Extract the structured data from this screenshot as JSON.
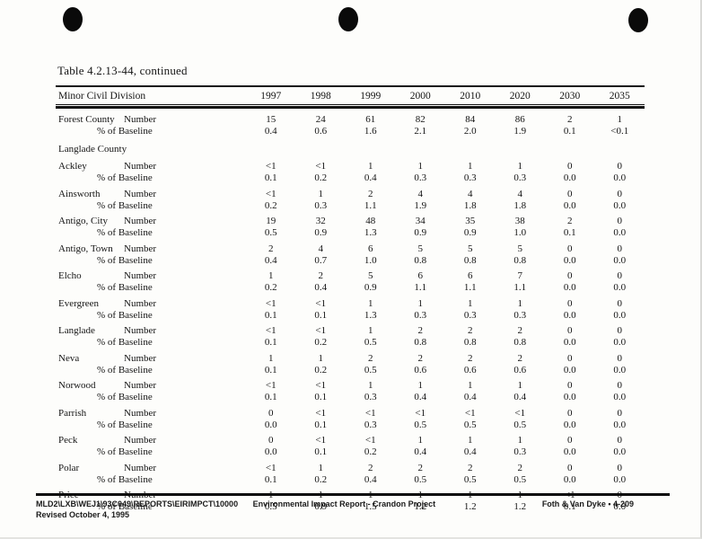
{
  "page": {
    "title": "Table 4.2.13-44, continued"
  },
  "table": {
    "columns": [
      "Minor Civil Division",
      "1997",
      "1998",
      "1999",
      "2000",
      "2010",
      "2020",
      "2030",
      "2035"
    ],
    "number_label": "Number",
    "pct_label": "% of Baseline",
    "rows": [
      {
        "type": "data",
        "name": "Forest County",
        "number": [
          "15",
          "24",
          "61",
          "82",
          "84",
          "86",
          "2",
          "1"
        ],
        "pct": [
          "0.4",
          "0.6",
          "1.6",
          "2.1",
          "2.0",
          "1.9",
          "0.1",
          "<0.1"
        ]
      },
      {
        "type": "section",
        "name": "Langlade County"
      },
      {
        "type": "data",
        "name": "Ackley",
        "number": [
          "<1",
          "<1",
          "1",
          "1",
          "1",
          "1",
          "0",
          "0"
        ],
        "pct": [
          "0.1",
          "0.2",
          "0.4",
          "0.3",
          "0.3",
          "0.3",
          "0.0",
          "0.0"
        ]
      },
      {
        "type": "data",
        "name": "Ainsworth",
        "number": [
          "<1",
          "1",
          "2",
          "4",
          "4",
          "4",
          "0",
          "0"
        ],
        "pct": [
          "0.2",
          "0.3",
          "1.1",
          "1.9",
          "1.8",
          "1.8",
          "0.0",
          "0.0"
        ]
      },
      {
        "type": "data",
        "name": "Antigo, City",
        "number": [
          "19",
          "32",
          "48",
          "34",
          "35",
          "38",
          "2",
          "0"
        ],
        "pct": [
          "0.5",
          "0.9",
          "1.3",
          "0.9",
          "0.9",
          "1.0",
          "0.1",
          "0.0"
        ]
      },
      {
        "type": "data",
        "name": "Antigo, Town",
        "number": [
          "2",
          "4",
          "6",
          "5",
          "5",
          "5",
          "0",
          "0"
        ],
        "pct": [
          "0.4",
          "0.7",
          "1.0",
          "0.8",
          "0.8",
          "0.8",
          "0.0",
          "0.0"
        ]
      },
      {
        "type": "data",
        "name": "Elcho",
        "number": [
          "1",
          "2",
          "5",
          "6",
          "6",
          "7",
          "0",
          "0"
        ],
        "pct": [
          "0.2",
          "0.4",
          "0.9",
          "1.1",
          "1.1",
          "1.1",
          "0.0",
          "0.0"
        ]
      },
      {
        "type": "data",
        "name": "Evergreen",
        "number": [
          "<1",
          "<1",
          "1",
          "1",
          "1",
          "1",
          "0",
          "0"
        ],
        "pct": [
          "0.1",
          "0.1",
          "1.3",
          "0.3",
          "0.3",
          "0.3",
          "0.0",
          "0.0"
        ]
      },
      {
        "type": "data",
        "name": "Langlade",
        "number": [
          "<1",
          "<1",
          "1",
          "2",
          "2",
          "2",
          "0",
          "0"
        ],
        "pct": [
          "0.1",
          "0.2",
          "0.5",
          "0.8",
          "0.8",
          "0.8",
          "0.0",
          "0.0"
        ]
      },
      {
        "type": "data",
        "name": "Neva",
        "number": [
          "1",
          "1",
          "2",
          "2",
          "2",
          "2",
          "0",
          "0"
        ],
        "pct": [
          "0.1",
          "0.2",
          "0.5",
          "0.6",
          "0.6",
          "0.6",
          "0.0",
          "0.0"
        ]
      },
      {
        "type": "data",
        "name": "Norwood",
        "number": [
          "<1",
          "<1",
          "1",
          "1",
          "1",
          "1",
          "0",
          "0"
        ],
        "pct": [
          "0.1",
          "0.1",
          "0.3",
          "0.4",
          "0.4",
          "0.4",
          "0.0",
          "0.0"
        ]
      },
      {
        "type": "data",
        "name": "Parrish",
        "number": [
          "0",
          "<1",
          "<1",
          "<1",
          "<1",
          "<1",
          "0",
          "0"
        ],
        "pct": [
          "0.0",
          "0.1",
          "0.3",
          "0.5",
          "0.5",
          "0.5",
          "0.0",
          "0.0"
        ]
      },
      {
        "type": "data",
        "name": "Peck",
        "number": [
          "0",
          "<1",
          "<1",
          "1",
          "1",
          "1",
          "0",
          "0"
        ],
        "pct": [
          "0.0",
          "0.1",
          "0.2",
          "0.4",
          "0.4",
          "0.3",
          "0.0",
          "0.0"
        ]
      },
      {
        "type": "data",
        "name": "Polar",
        "number": [
          "<1",
          "1",
          "2",
          "2",
          "2",
          "2",
          "0",
          "0"
        ],
        "pct": [
          "0.1",
          "0.2",
          "0.4",
          "0.5",
          "0.5",
          "0.5",
          "0.0",
          "0.0"
        ]
      },
      {
        "type": "data",
        "name": "Price",
        "number": [
          "1",
          "1",
          "1",
          "1",
          "1",
          "1",
          "<1",
          "0"
        ],
        "pct": [
          "0.5",
          "0.9",
          "1.5",
          "1.2",
          "1.2",
          "1.2",
          "0.1",
          "0.0"
        ]
      }
    ]
  },
  "footer": {
    "path": "MLD2\\LXB\\WEJ1\\93C049\\REPORTS\\EIRIMPCT\\10000",
    "doc_title": "Environmental Impact Report - Crandon Project",
    "right": "Foth & Van Dyke • 4-209",
    "revised": "Revised October 4, 1995"
  }
}
